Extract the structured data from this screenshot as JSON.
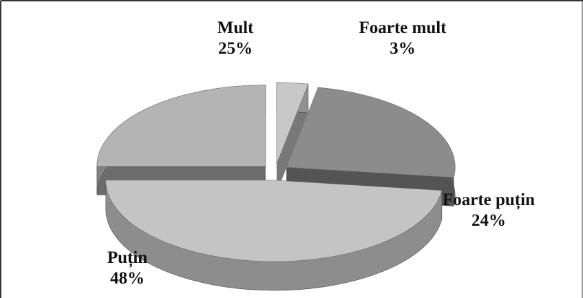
{
  "chart_data": {
    "type": "pie",
    "categories": [
      "Mult",
      "Foarte mult",
      "Foarte puțin",
      "Puțin"
    ],
    "values": [
      25,
      3,
      24,
      48
    ],
    "value_labels": [
      "25%",
      "3%",
      "24%",
      "48%"
    ],
    "colors": [
      "#b4b4b4",
      "#c8c8c8",
      "#8c8c8c",
      "#c4c4c4"
    ]
  }
}
